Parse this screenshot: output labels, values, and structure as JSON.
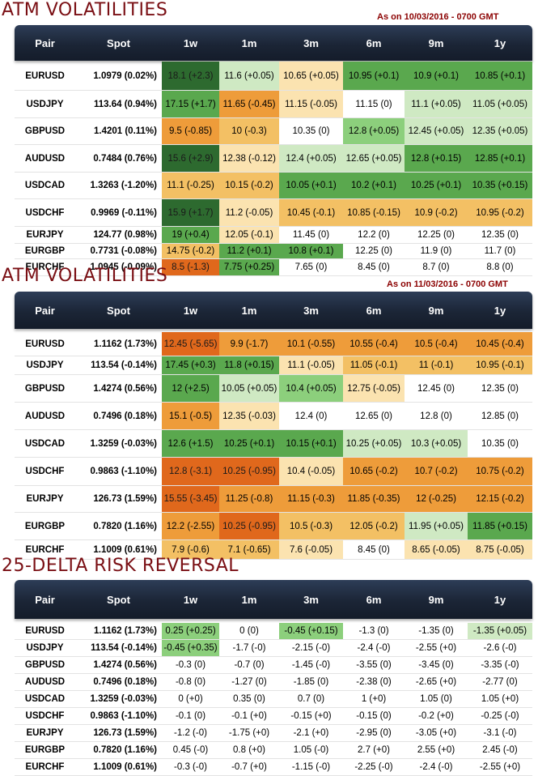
{
  "columns": [
    "Pair",
    "Spot",
    "1w",
    "1m",
    "3m",
    "6m",
    "9m",
    "1y"
  ],
  "colors": {
    "very_high": "#2d6a2f",
    "high": "#5aa84e",
    "mid_high": "#8ccf7c",
    "low_high": "#cfe9c3",
    "neutral": "#ffffff",
    "low_low": "#fbe3b0",
    "mid_low": "#f3c064",
    "low": "#ee9c3a",
    "very_low": "#e0681c"
  },
  "chart_data": [
    {
      "type": "table",
      "title": "ATM VOLATILITIES",
      "as_of": "As on 10/03/2016 - 0700 GMT",
      "rows": [
        {
          "pair": "EURUSD",
          "spot": "1.0979 (0.02%)",
          "cells": [
            "18.1 (+2.3)",
            "11.6 (+0.05)",
            "10.65 (+0.05)",
            "10.95 (+0.1)",
            "10.9 (+0.1)",
            "10.85 (+0.1)"
          ],
          "colors": [
            "very_high",
            "low_high",
            "low_low",
            "high",
            "high",
            "high"
          ]
        },
        {
          "pair": "USDJPY",
          "spot": "113.64 (0.94%)",
          "cells": [
            "17.15 (+1.7)",
            "11.65 (-0.45)",
            "11.15 (-0.05)",
            "11.15 (0)",
            "11.1 (+0.05)",
            "11.05 (+0.05)"
          ],
          "colors": [
            "high",
            "low",
            "low_low",
            "neutral",
            "low_high",
            "low_high"
          ]
        },
        {
          "pair": "GBPUSD",
          "spot": "1.4201 (0.11%)",
          "cells": [
            "9.5 (-0.85)",
            "10 (-0.3)",
            "10.35 (0)",
            "12.8 (+0.05)",
            "12.45 (+0.05)",
            "12.35 (+0.05)"
          ],
          "colors": [
            "low",
            "mid_low",
            "neutral",
            "mid_high",
            "low_high",
            "low_high"
          ]
        },
        {
          "pair": "AUDUSD",
          "spot": "0.7484 (0.76%)",
          "cells": [
            "15.6 (+2.9)",
            "12.38 (-0.12)",
            "12.4 (+0.05)",
            "12.65 (+0.05)",
            "12.8 (+0.15)",
            "12.85 (+0.1)"
          ],
          "colors": [
            "very_high",
            "low_low",
            "low_high",
            "low_high",
            "high",
            "high"
          ]
        },
        {
          "pair": "USDCAD",
          "spot": "1.3263 (-1.20%)",
          "cells": [
            "11.1 (-0.25)",
            "10.15 (-0.2)",
            "10.05 (+0.1)",
            "10.2 (+0.1)",
            "10.25 (+0.1)",
            "10.35 (+0.15)"
          ],
          "colors": [
            "mid_low",
            "mid_low",
            "high",
            "high",
            "high",
            "high"
          ]
        },
        {
          "pair": "USDCHF",
          "spot": "0.9969 (-0.11%)",
          "cells": [
            "15.9 (+1.7)",
            "11.2 (-0.05)",
            "10.45 (-0.1)",
            "10.85 (-0.15)",
            "10.9 (-0.2)",
            "10.95 (-0.2)"
          ],
          "colors": [
            "very_high",
            "low_low",
            "mid_low",
            "mid_low",
            "mid_low",
            "mid_low"
          ]
        },
        {
          "pair": "EURJPY",
          "spot": "124.77 (0.98%)",
          "cells": [
            "19 (+0.4)",
            "12.05 (-0.1)",
            "11.45 (0)",
            "12.2 (0)",
            "12.25 (0)",
            "12.35 (0)"
          ],
          "colors": [
            "high",
            "low_low",
            "neutral",
            "neutral",
            "neutral",
            "neutral"
          ]
        },
        {
          "pair": "EURGBP",
          "spot": "0.7731 (-0.08%)",
          "cells": [
            "14.75 (-0.2)",
            "11.2 (+0.1)",
            "10.8 (+0.1)",
            "12.25 (0)",
            "11.9 (0)",
            "11.7 (0)"
          ],
          "colors": [
            "mid_low",
            "high",
            "high",
            "neutral",
            "neutral",
            "neutral"
          ]
        },
        {
          "pair": "EURCHF",
          "spot": "1.0945 (-0.09%)",
          "cells": [
            "8.5 (-1.3)",
            "7.75 (+0.25)",
            "7.65 (0)",
            "8.45 (0)",
            "8.7 (0)",
            "8.8 (0)"
          ],
          "colors": [
            "very_low",
            "high",
            "neutral",
            "neutral",
            "neutral",
            "neutral"
          ]
        }
      ]
    },
    {
      "type": "table",
      "title": "ATM VOLATILITIES",
      "as_of": "As on 11/03/2016 - 0700 GMT",
      "rows": [
        {
          "pair": "EURUSD",
          "spot": "1.1162 (1.73%)",
          "cells": [
            "12.45 (-5.65)",
            "9.9 (-1.7)",
            "10.1 (-0.55)",
            "10.55 (-0.4)",
            "10.5 (-0.4)",
            "10.45 (-0.4)"
          ],
          "colors": [
            "very_low",
            "low",
            "low",
            "low",
            "low",
            "low"
          ]
        },
        {
          "pair": "USDJPY",
          "spot": "113.54 (-0.14%)",
          "cells": [
            "17.45 (+0.3)",
            "11.8 (+0.15)",
            "11.1 (-0.05)",
            "11.05 (-0.1)",
            "11 (-0.1)",
            "10.95 (-0.1)"
          ],
          "colors": [
            "high",
            "high",
            "low_low",
            "mid_low",
            "mid_low",
            "mid_low"
          ]
        },
        {
          "pair": "GBPUSD",
          "spot": "1.4274 (0.56%)",
          "cells": [
            "12 (+2.5)",
            "10.05 (+0.05)",
            "10.4 (+0.05)",
            "12.75 (-0.05)",
            "12.45 (0)",
            "12.35 (0)"
          ],
          "colors": [
            "high",
            "low_high",
            "mid_high",
            "low_low",
            "neutral",
            "neutral"
          ]
        },
        {
          "pair": "AUDUSD",
          "spot": "0.7496 (0.18%)",
          "cells": [
            "15.1 (-0.5)",
            "12.35 (-0.03)",
            "12.4 (0)",
            "12.65 (0)",
            "12.8 (0)",
            "12.85 (0)"
          ],
          "colors": [
            "low",
            "low_low",
            "neutral",
            "neutral",
            "neutral",
            "neutral"
          ]
        },
        {
          "pair": "USDCAD",
          "spot": "1.3259 (-0.03%)",
          "cells": [
            "12.6 (+1.5)",
            "10.25 (+0.1)",
            "10.15 (+0.1)",
            "10.25 (+0.05)",
            "10.3 (+0.05)",
            "10.35 (0)"
          ],
          "colors": [
            "high",
            "high",
            "high",
            "low_high",
            "low_high",
            "neutral"
          ]
        },
        {
          "pair": "USDCHF",
          "spot": "0.9863 (-1.10%)",
          "cells": [
            "12.8 (-3.1)",
            "10.25 (-0.95)",
            "10.4 (-0.05)",
            "10.65 (-0.2)",
            "10.7 (-0.2)",
            "10.75 (-0.2)"
          ],
          "colors": [
            "very_low",
            "very_low",
            "low_low",
            "low",
            "low",
            "low"
          ]
        },
        {
          "pair": "EURJPY",
          "spot": "126.73 (1.59%)",
          "cells": [
            "15.55 (-3.45)",
            "11.25 (-0.8)",
            "11.15 (-0.3)",
            "11.85 (-0.35)",
            "12 (-0.25)",
            "12.15 (-0.2)"
          ],
          "colors": [
            "very_low",
            "low",
            "low",
            "low",
            "low",
            "low"
          ]
        },
        {
          "pair": "EURGBP",
          "spot": "0.7820 (1.16%)",
          "cells": [
            "12.2 (-2.55)",
            "10.25 (-0.95)",
            "10.5 (-0.3)",
            "12.05 (-0.2)",
            "11.95 (+0.05)",
            "11.85 (+0.15)"
          ],
          "colors": [
            "low",
            "very_low",
            "mid_low",
            "mid_low",
            "low_high",
            "high"
          ]
        },
        {
          "pair": "EURCHF",
          "spot": "1.1009 (0.61%)",
          "cells": [
            "7.9 (-0.6)",
            "7.1 (-0.65)",
            "7.6 (-0.05)",
            "8.45 (0)",
            "8.65 (-0.05)",
            "8.75 (-0.05)"
          ],
          "colors": [
            "mid_low",
            "mid_low",
            "low_low",
            "neutral",
            "low_low",
            "low_low"
          ]
        }
      ]
    },
    {
      "type": "table",
      "title": "25-DELTA RISK REVERSAL",
      "as_of": "",
      "rows": [
        {
          "pair": "EURUSD",
          "spot": "1.1162 (1.73%)",
          "cells": [
            "0.25 (+0.25)",
            "0 (0)",
            "-0.45 (+0.15)",
            "-1.3 (0)",
            "-1.35 (0)",
            "-1.35 (+0.05)"
          ],
          "colors": [
            "mid_high",
            "neutral",
            "mid_high",
            "neutral",
            "neutral",
            "low_high"
          ]
        },
        {
          "pair": "USDJPY",
          "spot": "113.54 (-0.14%)",
          "cells": [
            "-0.45 (+0.35)",
            "-1.7 (-0)",
            "-2.15 (-0)",
            "-2.4 (-0)",
            "-2.55 (+0)",
            "-2.6 (-0)"
          ],
          "colors": [
            "mid_high",
            "neutral",
            "neutral",
            "neutral",
            "neutral",
            "neutral"
          ]
        },
        {
          "pair": "GBPUSD",
          "spot": "1.4274 (0.56%)",
          "cells": [
            "-0.3 (0)",
            "-0.7 (0)",
            "-1.45 (-0)",
            "-3.55 (0)",
            "-3.45 (0)",
            "-3.35 (-0)"
          ],
          "colors": [
            "neutral",
            "neutral",
            "neutral",
            "neutral",
            "neutral",
            "neutral"
          ]
        },
        {
          "pair": "AUDUSD",
          "spot": "0.7496 (0.18%)",
          "cells": [
            "-0.8 (0)",
            "-1.27 (0)",
            "-1.85 (0)",
            "-2.38 (0)",
            "-2.65 (+0)",
            "-2.77 (0)"
          ],
          "colors": [
            "neutral",
            "neutral",
            "neutral",
            "neutral",
            "neutral",
            "neutral"
          ]
        },
        {
          "pair": "USDCAD",
          "spot": "1.3259 (-0.03%)",
          "cells": [
            "0 (+0)",
            "0.35 (0)",
            "0.7 (0)",
            "1 (+0)",
            "1.05 (0)",
            "1.05 (+0)"
          ],
          "colors": [
            "neutral",
            "neutral",
            "neutral",
            "neutral",
            "neutral",
            "neutral"
          ]
        },
        {
          "pair": "USDCHF",
          "spot": "0.9863 (-1.10%)",
          "cells": [
            "-0.1 (0)",
            "-0.1 (+0)",
            "-0.15 (+0)",
            "-0.15 (0)",
            "-0.2 (+0)",
            "-0.25 (-0)"
          ],
          "colors": [
            "neutral",
            "neutral",
            "neutral",
            "neutral",
            "neutral",
            "neutral"
          ]
        },
        {
          "pair": "EURJPY",
          "spot": "126.73 (1.59%)",
          "cells": [
            "-1.2 (-0)",
            "-1.75 (+0)",
            "-2.1 (+0)",
            "-2.95 (0)",
            "-3.05 (+0)",
            "-3.1 (-0)"
          ],
          "colors": [
            "neutral",
            "neutral",
            "neutral",
            "neutral",
            "neutral",
            "neutral"
          ]
        },
        {
          "pair": "EURGBP",
          "spot": "0.7820 (1.16%)",
          "cells": [
            "0.45 (-0)",
            "0.8 (+0)",
            "1.05 (-0)",
            "2.7 (+0)",
            "2.55 (+0)",
            "2.45 (-0)"
          ],
          "colors": [
            "neutral",
            "neutral",
            "neutral",
            "neutral",
            "neutral",
            "neutral"
          ]
        },
        {
          "pair": "EURCHF",
          "spot": "1.1009 (0.61%)",
          "cells": [
            "-0.3 (-0)",
            "-0.7 (+0)",
            "-1.15 (-0)",
            "-2.25 (-0)",
            "-2.4 (-0)",
            "-2.55 (+0)"
          ],
          "colors": [
            "neutral",
            "neutral",
            "neutral",
            "neutral",
            "neutral",
            "neutral"
          ]
        }
      ]
    }
  ]
}
